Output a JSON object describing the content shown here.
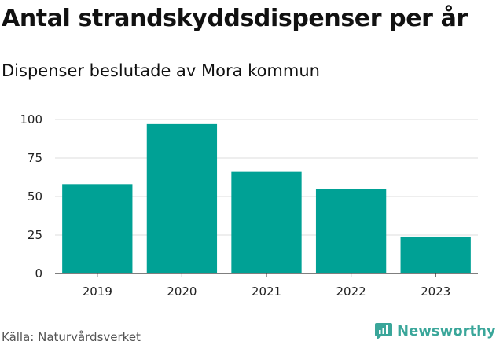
{
  "header": {
    "title": "Antal strandskyddsdispenser per år",
    "subtitle": "Dispenser beslutade av Mora kommun"
  },
  "footer": {
    "source": "Källa: Naturvårdsverket",
    "brand": "Newsworthy",
    "brand_color": "#3aa69a"
  },
  "chart_data": {
    "type": "bar",
    "title": "Antal strandskyddsdispenser per år",
    "subtitle": "Dispenser beslutade av Mora kommun",
    "categories": [
      "2019",
      "2020",
      "2021",
      "2022",
      "2023"
    ],
    "values": [
      58,
      97,
      66,
      55,
      24
    ],
    "yticks": [
      0,
      25,
      50,
      75,
      100
    ],
    "ylim": [
      0,
      100
    ],
    "xlabel": "",
    "ylabel": "",
    "grid": true,
    "bar_color": "#00a195",
    "grid_color": "#dddddd"
  }
}
